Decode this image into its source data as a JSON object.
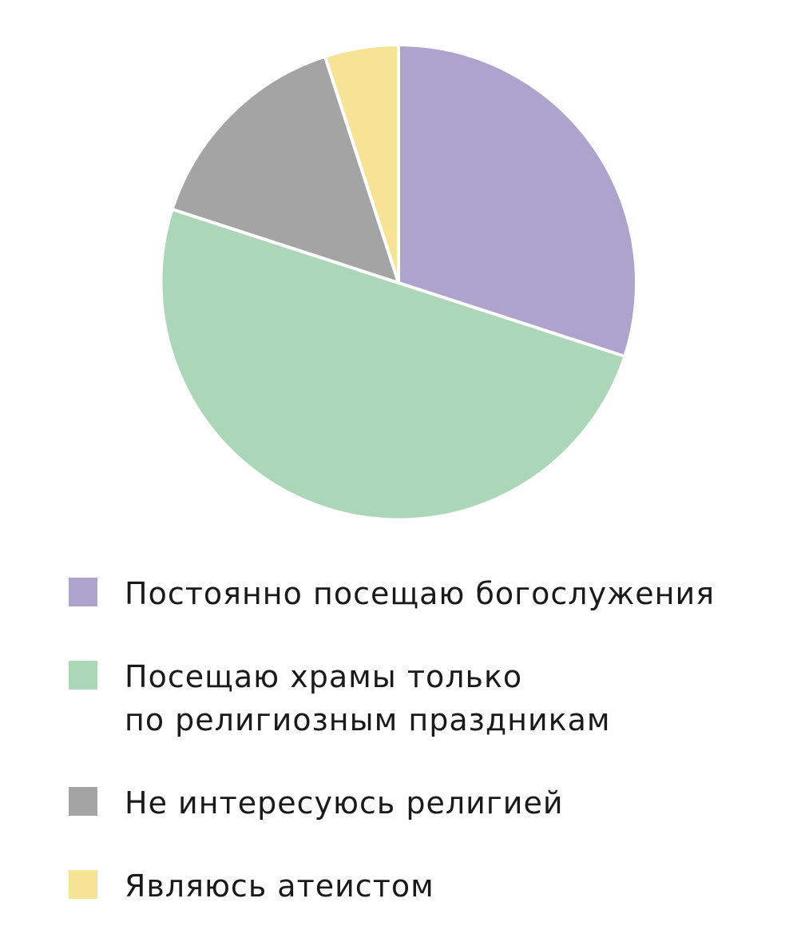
{
  "chart_data": {
    "type": "pie",
    "title": "",
    "slices": [
      {
        "label": "Постоянно посещаю богослужения",
        "value": 30,
        "color": "#ada3cd"
      },
      {
        "label": "Посещаю храмы только\nпо религиозным праздникам",
        "value": 50,
        "color": "#acd6b8"
      },
      {
        "label": "Не интересуюсь религией",
        "value": 15,
        "color": "#a4a4a4"
      },
      {
        "label": "Являюсь атеистом",
        "value": 5,
        "color": "#f6e396"
      }
    ],
    "start": "top",
    "direction": "clockwise",
    "legend_position": "bottom-left"
  }
}
